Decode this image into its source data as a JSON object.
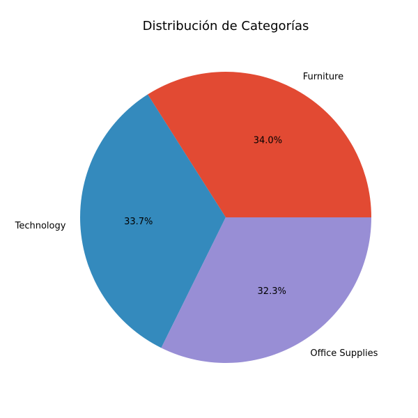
{
  "chart_data": {
    "type": "pie",
    "title": "Distribución de Categorías",
    "slices": [
      {
        "label": "Furniture",
        "value": 34.0,
        "pct_text": "34.0%",
        "color": "#E24A33"
      },
      {
        "label": "Technology",
        "value": 33.7,
        "pct_text": "33.7%",
        "color": "#348ABD"
      },
      {
        "label": "Office Supplies",
        "value": 32.3,
        "pct_text": "32.3%",
        "color": "#988ED5"
      }
    ],
    "start_angle": 0,
    "direction": "counterclockwise",
    "legend": "none"
  }
}
